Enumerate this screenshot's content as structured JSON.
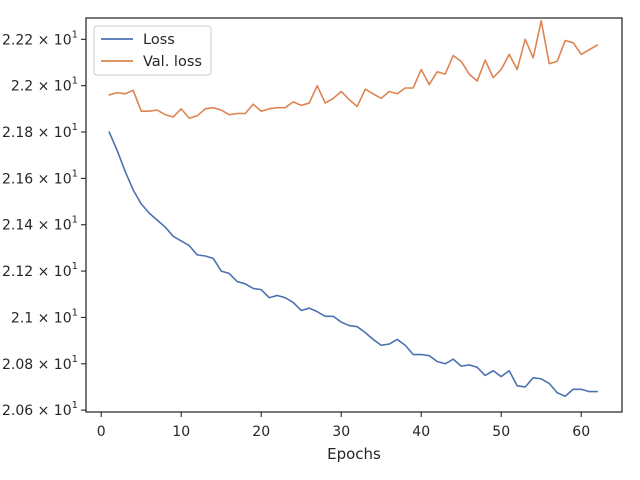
{
  "chart_data": {
    "type": "line",
    "title": "",
    "xlabel": "Epochs",
    "ylabel": "",
    "xlim": [
      -1.9,
      65.1
    ],
    "ylim": [
      20.592,
      22.292
    ],
    "x_ticks": [
      0,
      10,
      20,
      30,
      40,
      50,
      60
    ],
    "x_tick_labels": [
      "0",
      "10",
      "20",
      "30",
      "40",
      "50",
      "60"
    ],
    "y_ticks": [
      20.6,
      20.8,
      21.0,
      21.2,
      21.4,
      21.6,
      21.8,
      22.0,
      22.2
    ],
    "y_tick_labels": [
      {
        "mantissa": "2.06",
        "exp": "1"
      },
      {
        "mantissa": "2.08",
        "exp": "1"
      },
      {
        "mantissa": "2.1",
        "exp": "1"
      },
      {
        "mantissa": "2.12",
        "exp": "1"
      },
      {
        "mantissa": "2.14",
        "exp": "1"
      },
      {
        "mantissa": "2.16",
        "exp": "1"
      },
      {
        "mantissa": "2.18",
        "exp": "1"
      },
      {
        "mantissa": "2.2",
        "exp": "1"
      },
      {
        "mantissa": "2.22",
        "exp": "1"
      }
    ],
    "tick_base": "10",
    "tick_times": "×",
    "grid": false,
    "legend_position": "top-left",
    "x": [
      1,
      2,
      3,
      4,
      5,
      6,
      7,
      8,
      9,
      10,
      11,
      12,
      13,
      14,
      15,
      16,
      17,
      18,
      19,
      20,
      21,
      22,
      23,
      24,
      25,
      26,
      27,
      28,
      29,
      30,
      31,
      32,
      33,
      34,
      35,
      36,
      37,
      38,
      39,
      40,
      41,
      42,
      43,
      44,
      45,
      46,
      47,
      48,
      49,
      50,
      51,
      52,
      53,
      54,
      55,
      56,
      57,
      58,
      59,
      60,
      61,
      62
    ],
    "series": [
      {
        "name": "Loss",
        "color": "#4c72b0",
        "values": [
          21.8,
          21.72,
          21.63,
          21.55,
          21.49,
          21.45,
          21.42,
          21.39,
          21.35,
          21.33,
          21.31,
          21.27,
          21.265,
          21.255,
          21.2,
          21.19,
          21.155,
          21.145,
          21.125,
          21.12,
          21.085,
          21.095,
          21.085,
          21.065,
          21.03,
          21.04,
          21.025,
          21.005,
          21.005,
          20.98,
          20.965,
          20.96,
          20.935,
          20.905,
          20.88,
          20.885,
          20.905,
          20.88,
          20.84,
          20.84,
          20.835,
          20.81,
          20.8,
          20.82,
          20.79,
          20.795,
          20.785,
          20.75,
          20.77,
          20.745,
          20.77,
          20.705,
          20.7,
          20.74,
          20.735,
          20.715,
          20.675,
          20.66,
          20.69,
          20.69,
          20.68,
          20.68
        ]
      },
      {
        "name": "Val. loss",
        "color": "#dd8452",
        "values": [
          21.96,
          21.97,
          21.965,
          21.98,
          21.89,
          21.89,
          21.895,
          21.875,
          21.865,
          21.9,
          21.86,
          21.87,
          21.9,
          21.905,
          21.895,
          21.875,
          21.88,
          21.88,
          21.92,
          21.89,
          21.9,
          21.905,
          21.905,
          21.93,
          21.915,
          21.925,
          22.0,
          21.925,
          21.945,
          21.975,
          21.94,
          21.91,
          21.985,
          21.965,
          21.945,
          21.975,
          21.965,
          21.99,
          21.99,
          22.07,
          22.005,
          22.06,
          22.05,
          22.13,
          22.105,
          22.05,
          22.02,
          22.11,
          22.035,
          22.07,
          22.135,
          22.07,
          22.2,
          22.12,
          22.28,
          22.095,
          22.105,
          22.195,
          22.185,
          22.135,
          22.155,
          22.175
        ]
      }
    ]
  }
}
